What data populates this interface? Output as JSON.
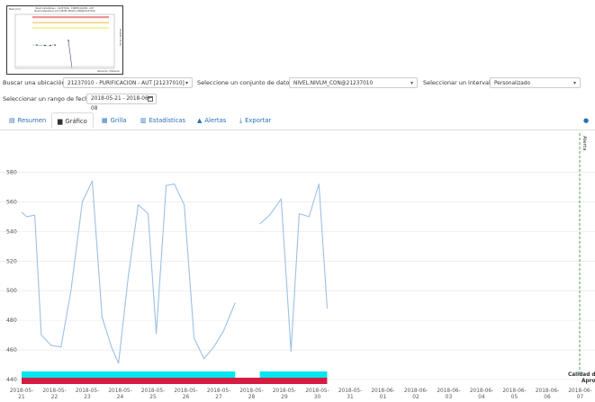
{
  "controls": {
    "location_label": "Buscar una ubicación:",
    "location_value": "21237010 - PURIFICACION - AUT [21237010]",
    "dataset_label": "Seleccione un conjunto de datos:",
    "dataset_value": "NIVEL.NIVLM_CON@21237010",
    "interval_label": "Seleccionar un intervalo:",
    "interval_value": "Personalizado",
    "range_label": "Seleccionar un rango de fecha:",
    "range_value": "2018-05-21 - 2018-06-08"
  },
  "tabs": [
    {
      "label": "Resumen",
      "icon": "table-icon"
    },
    {
      "label": "Gráfico",
      "icon": "bar-chart-icon"
    },
    {
      "label": "Grilla",
      "icon": "grid-icon"
    },
    {
      "label": "Estadísticas",
      "icon": "stats-icon"
    },
    {
      "label": "Alertas",
      "icon": "warning-icon"
    },
    {
      "label": "Exportar",
      "icon": "download-icon"
    }
  ],
  "active_tab": "Gráfico",
  "colors": {
    "line": "#9cc0e4",
    "quality_cyan": "#00e5ee",
    "quality_red": "#d51d43",
    "alert_line": "#3a9a3a",
    "link": "#2a6ebb"
  },
  "chart_data": {
    "type": "line",
    "ylim": [
      434,
      594
    ],
    "yticks": [
      440,
      460,
      480,
      500,
      520,
      540,
      560,
      580
    ],
    "xticks": [
      [
        "2018-05-",
        "21"
      ],
      [
        "2018-05-",
        "22"
      ],
      [
        "2018-05-",
        "23"
      ],
      [
        "2018-05-",
        "24"
      ],
      [
        "2018-05-",
        "25"
      ],
      [
        "2018-05-",
        "26"
      ],
      [
        "2018-05-",
        "27"
      ],
      [
        "2018-05-",
        "28"
      ],
      [
        "2018-05-",
        "29"
      ],
      [
        "2018-05-",
        "30"
      ],
      [
        "2018-05-",
        "31"
      ],
      [
        "2018-06-",
        "01"
      ],
      [
        "2018-06-",
        "02"
      ],
      [
        "2018-06-",
        "03"
      ],
      [
        "2018-06-",
        "04"
      ],
      [
        "2018-06-",
        "05"
      ],
      [
        "2018-06-",
        "06"
      ],
      [
        "2018-06-",
        "07"
      ]
    ],
    "series": [
      {
        "segments": [
          [
            [
              0,
              553
            ],
            [
              0.15,
              550
            ],
            [
              0.4,
              551
            ],
            [
              0.6,
              470
            ],
            [
              0.9,
              463
            ],
            [
              1.2,
              462
            ],
            [
              1.5,
              500
            ],
            [
              1.85,
              560
            ],
            [
              2.15,
              574
            ],
            [
              2.45,
              482
            ],
            [
              2.75,
              461
            ],
            [
              2.95,
              451
            ],
            [
              3.25,
              510
            ],
            [
              3.55,
              558
            ],
            [
              3.85,
              552
            ],
            [
              4.1,
              471
            ],
            [
              4.4,
              571
            ],
            [
              4.65,
              572
            ],
            [
              4.95,
              558
            ],
            [
              5.25,
              468
            ],
            [
              5.55,
              454
            ],
            [
              5.85,
              462
            ],
            [
              6.15,
              473
            ],
            [
              6.5,
              492
            ]
          ],
          [
            [
              7.25,
              545
            ],
            [
              7.55,
              551
            ],
            [
              7.9,
              562
            ],
            [
              8.2,
              459
            ],
            [
              8.45,
              552
            ],
            [
              8.75,
              550
            ],
            [
              9.05,
              572
            ],
            [
              9.3,
              488
            ]
          ]
        ]
      }
    ],
    "alert_label": "Alerta",
    "quality_label_1": "Calidad d",
    "quality_label_2": "Apro",
    "quality_bands": {
      "cyan": [
        [
          0,
          6.5
        ],
        [
          7.25,
          9.3
        ]
      ],
      "red": [
        [
          0,
          9.3
        ]
      ]
    }
  },
  "thumbnail": {
    "title": "Nivel Instantáneo - 21237010 - PURIFICACION - AUT\nNivel Instantáneo [cm] NIVEL.NIVLM_CON@21237010",
    "meta": "Nivel [cm]",
    "ylabel": "Periodo / Fecha",
    "footer": "Ubicación / Estación"
  }
}
